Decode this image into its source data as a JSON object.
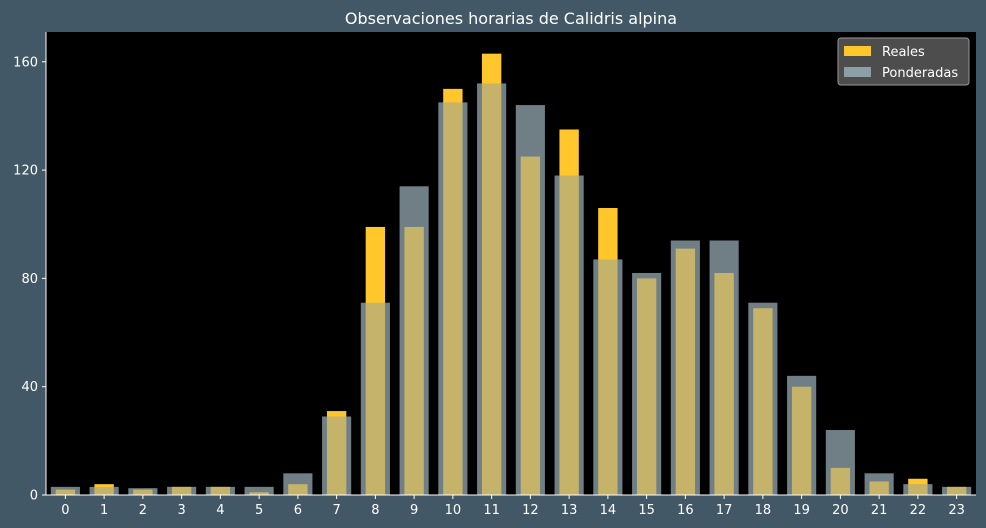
{
  "chart_data": {
    "type": "bar",
    "title": "Observaciones horarias de Calidris alpina",
    "xlabel": "",
    "ylabel": "",
    "categories": [
      "0",
      "1",
      "2",
      "3",
      "4",
      "5",
      "6",
      "7",
      "8",
      "9",
      "10",
      "11",
      "12",
      "13",
      "14",
      "15",
      "16",
      "17",
      "18",
      "19",
      "20",
      "21",
      "22",
      "23"
    ],
    "series": [
      {
        "name": "Reales",
        "color": "#ffc72c",
        "values": [
          2,
          4,
          2,
          3,
          3,
          1,
          4,
          31,
          99,
          99,
          150,
          163,
          125,
          135,
          106,
          80,
          91,
          82,
          69,
          40,
          10,
          5,
          6,
          3
        ]
      },
      {
        "name": "Ponderadas",
        "color": "#8c9fa6",
        "values": [
          3,
          3,
          2.5,
          3,
          3,
          3,
          8,
          29,
          71,
          114,
          145,
          152,
          144,
          118,
          87,
          82,
          94,
          94,
          71,
          44,
          24,
          8,
          4,
          3
        ]
      }
    ],
    "yticks": [
      0,
      40,
      80,
      120,
      160
    ],
    "ylim": [
      0,
      171
    ],
    "grid": false,
    "legend_position": "top-right",
    "colors": {
      "figure_background": "#425866",
      "plot_background": "#000000",
      "text": "#ffffff",
      "legend_background": "#555555"
    }
  }
}
